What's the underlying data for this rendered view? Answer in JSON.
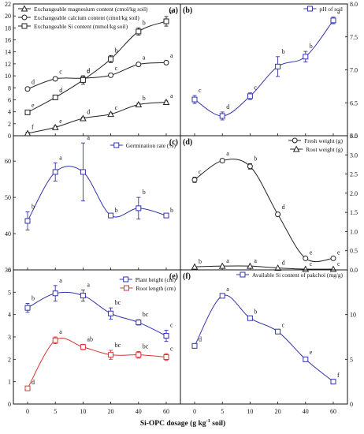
{
  "x_axis": {
    "tick_labels": [
      "0",
      "5",
      "10",
      "20",
      "40",
      "60"
    ],
    "title": "Si-OPC dosage (g kg",
    "title_sup": "-1",
    "title_tail": " soil)"
  },
  "chart_data": [
    {
      "type": "line",
      "panel": "(a)",
      "categories": [
        "0",
        "5",
        "10",
        "20",
        "40",
        "60"
      ],
      "ylim": [
        0,
        22
      ],
      "yticks": [
        0,
        2,
        4,
        6,
        8,
        10,
        12,
        14,
        16,
        18,
        20,
        22
      ],
      "axis_side": "left",
      "legend_position": "top-left",
      "series": [
        {
          "name": "Exchangeable magnesium content (cmol/kg soil)",
          "marker": "triangle",
          "color": "#222222",
          "values": [
            0.4,
            1.4,
            2.9,
            3.6,
            5.2,
            5.6
          ],
          "errors": [
            0.2,
            0.2,
            0.2,
            0.2,
            0.2,
            0.2
          ],
          "letters": [
            "f",
            "e",
            "d",
            "c",
            "b",
            "a"
          ]
        },
        {
          "name": "Exchangeable calcium content (cmol/kg soil)",
          "marker": "circle",
          "color": "#222222",
          "values": [
            7.8,
            9.5,
            9.6,
            10.1,
            11.9,
            12.2
          ],
          "errors": [
            0.3,
            0.3,
            0.3,
            0.3,
            0.3,
            0.3
          ],
          "letters": [
            "d",
            "c",
            "c",
            "c",
            "a",
            "a"
          ]
        },
        {
          "name": "Exchangeable Si content (mmol/kg soil)",
          "marker": "square",
          "color": "#222222",
          "values": [
            3.9,
            6.4,
            9.3,
            12.8,
            17.4,
            19.1
          ],
          "errors": [
            0.3,
            0.3,
            0.7,
            0.6,
            0.6,
            0.8
          ],
          "letters": [
            "e",
            "d",
            "d",
            "b",
            "b",
            "a"
          ]
        }
      ]
    },
    {
      "type": "line",
      "panel": "(b)",
      "categories": [
        "0",
        "5",
        "10",
        "20",
        "40",
        "60"
      ],
      "ylim": [
        6.0,
        8.0
      ],
      "yticks": [
        6.0,
        6.5,
        7.0,
        7.5,
        8.0
      ],
      "axis_side": "right",
      "legend_position": "top-right",
      "series": [
        {
          "name": "pH of soil",
          "marker": "square",
          "color": "#3333aa",
          "values": [
            6.55,
            6.3,
            6.6,
            7.05,
            7.2,
            7.75
          ],
          "errors": [
            0.06,
            0.06,
            0.05,
            0.15,
            0.08,
            0.05
          ],
          "letters": [
            "c",
            "d",
            "c",
            "b",
            "b",
            "a"
          ]
        }
      ]
    },
    {
      "type": "line",
      "panel": "(c)",
      "categories": [
        "0",
        "5",
        "10",
        "20",
        "40",
        "60"
      ],
      "ylim": [
        30,
        67
      ],
      "yticks": [
        30,
        40,
        50,
        60
      ],
      "axis_side": "left",
      "legend_position": "top-right",
      "series": [
        {
          "name": "Germination rate (%)",
          "marker": "square",
          "color": "#3333aa",
          "values": [
            43.5,
            57.0,
            57.0,
            45.0,
            47.0,
            45.0
          ],
          "errors": [
            2.5,
            2.5,
            8.0,
            0,
            3.0,
            0
          ],
          "letters": [
            "b",
            "a",
            "a",
            "b",
            "b",
            "b"
          ]
        }
      ]
    },
    {
      "type": "line",
      "panel": "(d)",
      "categories": [
        "0",
        "5",
        "10",
        "20",
        "40",
        "60"
      ],
      "ylim": [
        0,
        3.5
      ],
      "yticks": [
        0.0,
        0.5,
        1.0,
        1.5,
        2.0,
        2.5,
        3.0,
        3.5
      ],
      "axis_side": "right",
      "legend_position": "top-right",
      "series": [
        {
          "name": "Fresh weight (g)",
          "marker": "circle",
          "color": "#222222",
          "values": [
            2.35,
            2.85,
            2.7,
            1.45,
            0.3,
            0.3
          ],
          "errors": [
            0.07,
            0.05,
            0.07,
            0.05,
            0.02,
            0.02
          ],
          "letters": [
            "c",
            "a",
            "b",
            "d",
            "e",
            "e"
          ]
        },
        {
          "name": "Root weight (g)",
          "marker": "triangle",
          "color": "#222222",
          "values": [
            0.08,
            0.1,
            0.1,
            0.05,
            0.02,
            0.02
          ],
          "errors": [
            0,
            0,
            0,
            0,
            0,
            0
          ],
          "letters": [
            "b",
            "a",
            "a",
            "d",
            "c",
            "c"
          ]
        }
      ]
    },
    {
      "type": "line",
      "panel": "(e)",
      "categories": [
        "0",
        "5",
        "10",
        "20",
        "40",
        "60"
      ],
      "ylim": [
        0,
        6
      ],
      "yticks": [
        0,
        1,
        2,
        3,
        4,
        5,
        6
      ],
      "axis_side": "left",
      "legend_position": "top-right",
      "series": [
        {
          "name": "Plant height (cm)",
          "marker": "square",
          "color": "#3333aa",
          "values": [
            4.3,
            4.95,
            4.85,
            4.05,
            3.65,
            3.05
          ],
          "errors": [
            0.2,
            0.35,
            0.25,
            0.25,
            0.12,
            0.25
          ],
          "letters": [
            "b",
            "a",
            "a",
            "bc",
            "bc",
            "c"
          ]
        },
        {
          "name": "Root length (cm)",
          "marker": "square",
          "color": "#dd3333",
          "values": [
            0.7,
            2.85,
            2.55,
            2.2,
            2.2,
            2.1
          ],
          "errors": [
            0.05,
            0.15,
            0.12,
            0.2,
            0.15,
            0.15
          ],
          "letters": [
            "d",
            "a",
            "ab",
            "bc",
            "bc",
            "c"
          ]
        }
      ]
    },
    {
      "type": "line",
      "panel": "(f)",
      "categories": [
        "0",
        "5",
        "10",
        "20",
        "40",
        "60"
      ],
      "ylim": [
        0,
        15
      ],
      "yticks": [
        0,
        5,
        10
      ],
      "axis_side": "right",
      "legend_position": "top-right",
      "series": [
        {
          "name": "Available Si content of pakchoi (mg/g)",
          "marker": "square",
          "color": "#3333aa",
          "values": [
            6.5,
            12.1,
            9.6,
            8.1,
            5.0,
            2.5
          ],
          "errors": [
            0.15,
            0.15,
            0.15,
            0.15,
            0.2,
            0.15
          ],
          "letters": [
            "d",
            "a",
            "b",
            "c",
            "e",
            "f"
          ]
        }
      ]
    }
  ]
}
